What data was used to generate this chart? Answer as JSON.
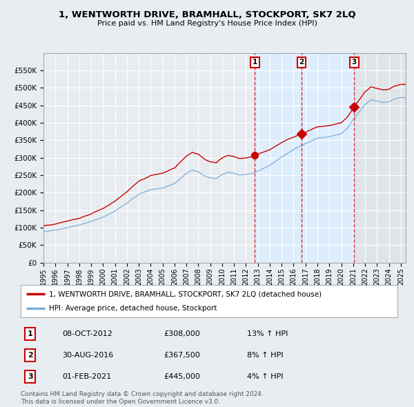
{
  "title": "1, WENTWORTH DRIVE, BRAMHALL, STOCKPORT, SK7 2LQ",
  "subtitle": "Price paid vs. HM Land Registry's House Price Index (HPI)",
  "ylim": [
    0,
    600000
  ],
  "yticks": [
    0,
    50000,
    100000,
    150000,
    200000,
    250000,
    300000,
    350000,
    400000,
    450000,
    500000,
    550000
  ],
  "ytick_labels": [
    "£0",
    "£50K",
    "£100K",
    "£150K",
    "£200K",
    "£250K",
    "£300K",
    "£350K",
    "£400K",
    "£450K",
    "£500K",
    "£550K"
  ],
  "sale_dates": [
    "2012-10-08",
    "2016-08-30",
    "2021-02-01"
  ],
  "sale_prices": [
    308000,
    367500,
    445000
  ],
  "sale_labels": [
    "1",
    "2",
    "3"
  ],
  "sale_markers": [
    "o",
    "D",
    "D"
  ],
  "sale_info": [
    {
      "num": "1",
      "date": "08-OCT-2012",
      "price": "£308,000",
      "hpi": "13% ↑ HPI"
    },
    {
      "num": "2",
      "date": "30-AUG-2016",
      "price": "£367,500",
      "hpi": "8% ↑ HPI"
    },
    {
      "num": "3",
      "date": "01-FEB-2021",
      "price": "£445,000",
      "hpi": "4% ↑ HPI"
    }
  ],
  "legend_house": "1, WENTWORTH DRIVE, BRAMHALL, STOCKPORT, SK7 2LQ (detached house)",
  "legend_hpi": "HPI: Average price, detached house, Stockport",
  "footnote": "Contains HM Land Registry data © Crown copyright and database right 2024.\nThis data is licensed under the Open Government Licence v3.0.",
  "house_color": "#cc0000",
  "hpi_color": "#7aaddb",
  "vline_color": "#cc0000",
  "shade_color": "#ddeeff",
  "background_color": "#e8edf2",
  "plot_bg_color": "#e8ecf0",
  "grid_color": "#ffffff",
  "x_start_year": 1995,
  "x_end_year": 2025,
  "hpi_points_years": [
    1995.0,
    1996.0,
    1997.0,
    1998.0,
    1999.0,
    2000.0,
    2001.0,
    2002.0,
    2003.0,
    2004.0,
    2005.0,
    2006.0,
    2007.0,
    2007.5,
    2008.0,
    2008.5,
    2009.0,
    2009.5,
    2010.0,
    2010.5,
    2011.0,
    2011.5,
    2012.0,
    2012.5,
    2013.0,
    2014.0,
    2015.0,
    2016.0,
    2016.5,
    2017.0,
    2018.0,
    2019.0,
    2020.0,
    2020.5,
    2021.0,
    2021.5,
    2022.0,
    2022.5,
    2023.0,
    2023.5,
    2024.0,
    2024.5,
    2025.0
  ],
  "hpi_points_vals": [
    88000,
    93000,
    100000,
    108000,
    118000,
    130000,
    148000,
    170000,
    195000,
    208000,
    212000,
    225000,
    255000,
    265000,
    260000,
    248000,
    242000,
    240000,
    252000,
    258000,
    255000,
    250000,
    252000,
    255000,
    262000,
    278000,
    302000,
    323000,
    332000,
    340000,
    355000,
    360000,
    368000,
    383000,
    408000,
    430000,
    452000,
    465000,
    462000,
    458000,
    460000,
    468000,
    472000
  ]
}
